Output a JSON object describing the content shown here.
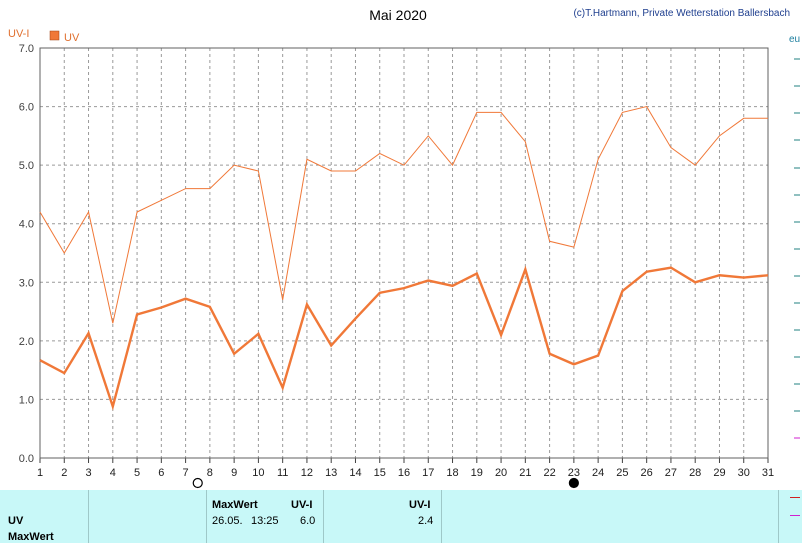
{
  "title": "Mai 2020",
  "credit": "(c)T.Hartmann, Private Wetterstation Ballersbach",
  "right_edge_label": "eu",
  "chart_data": {
    "type": "line",
    "ylabel": "UV-I",
    "ylim": [
      0,
      7
    ],
    "yticks": [
      "0.0",
      "1.0",
      "2.0",
      "3.0",
      "4.0",
      "5.0",
      "6.0",
      "7.0"
    ],
    "x": [
      1,
      2,
      3,
      4,
      5,
      6,
      7,
      8,
      9,
      10,
      11,
      12,
      13,
      14,
      15,
      16,
      17,
      18,
      19,
      20,
      21,
      22,
      23,
      24,
      25,
      26,
      27,
      28,
      29,
      30,
      31
    ],
    "grid": true,
    "legend": {
      "label": "UV",
      "placement": "top-left",
      "color": "#f07838"
    },
    "series": [
      {
        "values": [
          4.2,
          3.5,
          4.2,
          2.3,
          4.2,
          4.4,
          4.6,
          4.6,
          5.0,
          4.9,
          2.7,
          5.1,
          4.9,
          4.9,
          5.2,
          5.0,
          5.5,
          5.0,
          5.9,
          5.9,
          5.4,
          3.7,
          3.6,
          5.1,
          5.9,
          6.0,
          5.3,
          5.0,
          5.5,
          5.8,
          5.8
        ],
        "color": "#f07838",
        "weight": "thin"
      },
      {
        "values": [
          1.67,
          1.45,
          2.13,
          0.88,
          2.45,
          2.57,
          2.72,
          2.58,
          1.78,
          2.12,
          1.2,
          2.62,
          1.92,
          2.38,
          2.82,
          2.9,
          3.03,
          2.94,
          3.15,
          2.1,
          3.22,
          1.78,
          1.6,
          1.75,
          2.85,
          3.18,
          3.25,
          3.0,
          3.12,
          3.08,
          3.12
        ],
        "color": "#f07838",
        "weight": "thick"
      }
    ],
    "moon_markers": [
      {
        "day": 7.5,
        "phase": "open-circle"
      },
      {
        "day": 23,
        "phase": "filled-circle"
      }
    ]
  },
  "footer": {
    "row1_label": "UV",
    "row2_label": "MaxWert",
    "col_max_header": "MaxWert",
    "col_unit_header": "UV-I",
    "max_date": "26.05.",
    "max_time": "13:25",
    "max_value": "6.0",
    "col3_header": "UV-I",
    "col3_value": "2.4"
  }
}
